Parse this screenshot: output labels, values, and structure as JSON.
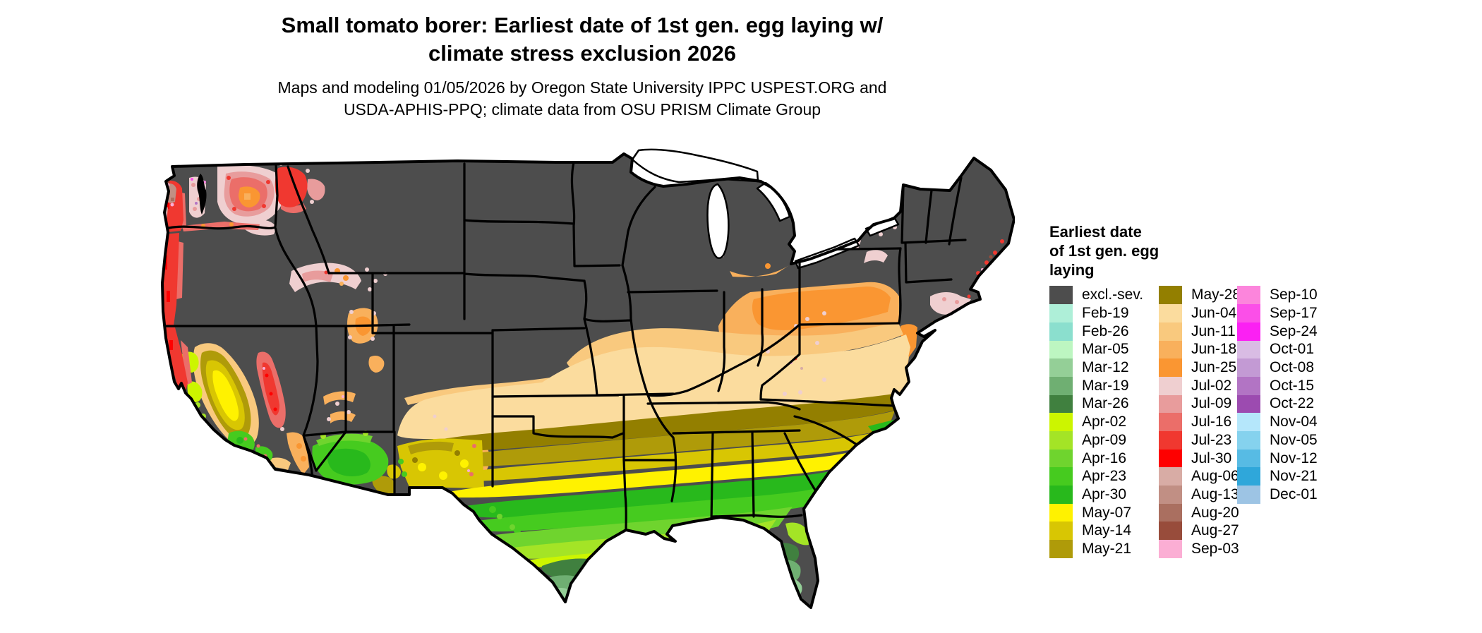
{
  "header": {
    "title_line1": "Small tomato borer: Earliest date of 1st gen. egg laying w/",
    "title_line2": "climate stress exclusion 2026",
    "subtitle_line1": "Maps and modeling 01/05/2026 by Oregon State University IPPC USPEST.ORG and",
    "subtitle_line2": "USDA-APHIS-PPQ; climate data from OSU PRISM Climate Group"
  },
  "legend": {
    "title_lines": [
      "Earliest date",
      "of 1st gen. egg",
      "laying"
    ],
    "columns": [
      {
        "items": [
          {
            "label": "excl.-sev.",
            "color": "#4D4D4D"
          },
          {
            "label": "Feb-19",
            "color": "#AEEFD8"
          },
          {
            "label": "Feb-26",
            "color": "#8BDFCE"
          },
          {
            "label": "Mar-05",
            "color": "#BDF6C1"
          },
          {
            "label": "Mar-12",
            "color": "#94CF97"
          },
          {
            "label": "Mar-19",
            "color": "#6FAF72"
          },
          {
            "label": "Mar-26",
            "color": "#40803F"
          },
          {
            "label": "Apr-02",
            "color": "#CCF500"
          },
          {
            "label": "Apr-09",
            "color": "#A4E426"
          },
          {
            "label": "Apr-16",
            "color": "#6FD42E"
          },
          {
            "label": "Apr-23",
            "color": "#46CB1F"
          },
          {
            "label": "Apr-30",
            "color": "#28B91C"
          },
          {
            "label": "May-07",
            "color": "#FFF200"
          },
          {
            "label": "May-14",
            "color": "#D8C603"
          },
          {
            "label": "May-21",
            "color": "#AF9B09"
          }
        ]
      },
      {
        "items": [
          {
            "label": "May-28",
            "color": "#937F00"
          },
          {
            "label": "Jun-04",
            "color": "#FBDC9E"
          },
          {
            "label": "Jun-11",
            "color": "#F9C97E"
          },
          {
            "label": "Jun-18",
            "color": "#F9B05C"
          },
          {
            "label": "Jun-25",
            "color": "#FA9632"
          },
          {
            "label": "Jul-02",
            "color": "#EFCFD0"
          },
          {
            "label": "Jul-09",
            "color": "#E89C9C"
          },
          {
            "label": "Jul-16",
            "color": "#EB6E69"
          },
          {
            "label": "Jul-23",
            "color": "#F03830"
          },
          {
            "label": "Jul-30",
            "color": "#FE0000"
          },
          {
            "label": "Aug-06",
            "color": "#D8ACA5"
          },
          {
            "label": "Aug-13",
            "color": "#C18F84"
          },
          {
            "label": "Aug-20",
            "color": "#AA6F60"
          },
          {
            "label": "Aug-27",
            "color": "#984C3B"
          },
          {
            "label": "Sep-03",
            "color": "#FBAED4"
          }
        ]
      },
      {
        "items": [
          {
            "label": "Sep-10",
            "color": "#FC85DC"
          },
          {
            "label": "Sep-17",
            "color": "#FB4FE8"
          },
          {
            "label": "Sep-24",
            "color": "#FB20F3"
          },
          {
            "label": "Oct-01",
            "color": "#D9BCE4"
          },
          {
            "label": "Oct-08",
            "color": "#C39AD4"
          },
          {
            "label": "Oct-15",
            "color": "#B274C4"
          },
          {
            "label": "Oct-22",
            "color": "#9C4BB0"
          },
          {
            "label": "Nov-04",
            "color": "#B5E7FB"
          },
          {
            "label": "Nov-05",
            "color": "#85D2EE"
          },
          {
            "label": "Nov-12",
            "color": "#57BBE4"
          },
          {
            "label": "Nov-21",
            "color": "#2FA7DA"
          },
          {
            "label": "Dec-01",
            "color": "#9DC4E4"
          }
        ]
      }
    ]
  },
  "colors": {
    "excl": "#4D4D4D",
    "feb19": "#AEEFD8",
    "feb26": "#8BDFCE",
    "mar05": "#BDF6C1",
    "mar12": "#94CF97",
    "mar19": "#6FAF72",
    "mar26": "#40803F",
    "apr02": "#CCF500",
    "apr09": "#A4E426",
    "apr16": "#6FD42E",
    "apr23": "#46CB1F",
    "apr30": "#28B91C",
    "may07": "#FFF200",
    "may14": "#D8C603",
    "may21": "#AF9B09",
    "may28": "#937F00",
    "jun04": "#FBDC9E",
    "jun11": "#F9C97E",
    "jun18": "#F9B05C",
    "jun25": "#FA9632",
    "jul02": "#EFCFD0",
    "jul09": "#E89C9C",
    "jul16": "#EB6E69",
    "jul23": "#F03830",
    "jul30": "#FE0000",
    "aug06": "#D8ACA5",
    "aug13": "#C18F84",
    "aug20": "#AA6F60",
    "aug27": "#984C3B",
    "sep03": "#FBAED4",
    "sep10": "#FC85DC",
    "sep17": "#FB4FE8",
    "sep24": "#FB20F3",
    "oct15": "#B274C4",
    "lake": "#FFFFFF",
    "border": "#000000"
  }
}
